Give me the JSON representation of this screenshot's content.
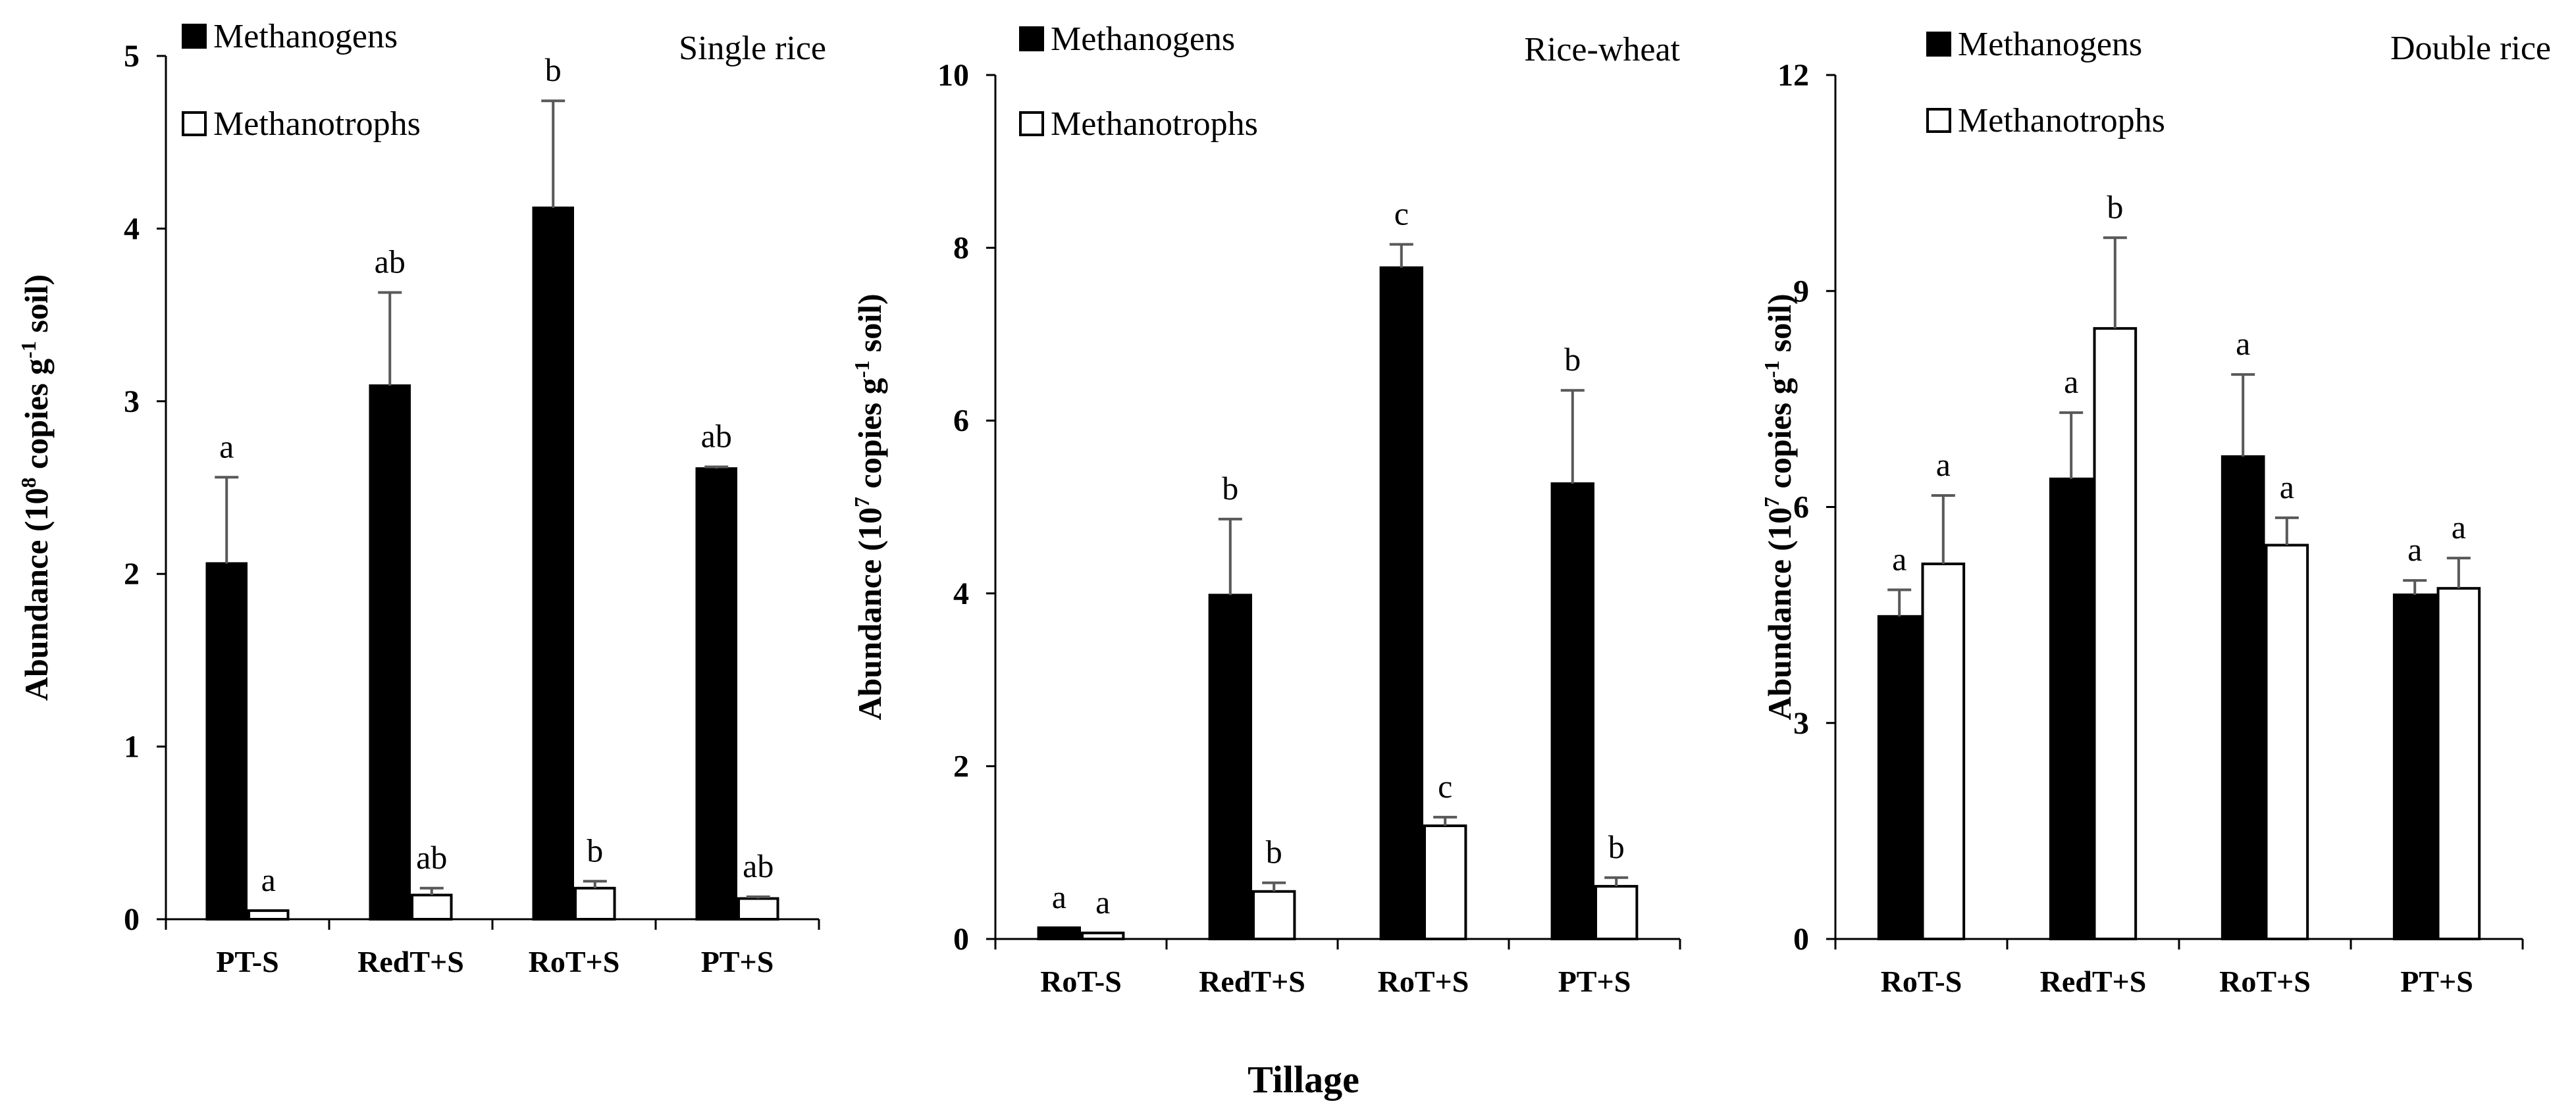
{
  "chart_data": [
    {
      "type": "bar",
      "title": "Single rice",
      "ylabel": {
        "pre": "Abundance (10",
        "sup": "8",
        "mid": " copies g",
        "sup2": "-1",
        "post": " soil)"
      },
      "ylim": [
        0,
        5
      ],
      "yticks": [
        0,
        1,
        2,
        3,
        4,
        5
      ],
      "categories": [
        "PT-S",
        "RedT+S",
        "RoT+S",
        "PT+S"
      ],
      "series": [
        {
          "name": "Methanogens",
          "fill": "#000000",
          "values": [
            2.06,
            3.09,
            4.12,
            2.61
          ],
          "errors": [
            0.5,
            0.54,
            0.62,
            0.01
          ],
          "letters": [
            "a",
            "ab",
            "b",
            "ab"
          ]
        },
        {
          "name": "Methanotrophs",
          "fill": "#ffffff",
          "values": [
            0.05,
            0.14,
            0.18,
            0.12
          ],
          "errors": [
            0.0,
            0.04,
            0.04,
            0.01
          ],
          "letters": [
            "a",
            "ab",
            "b",
            "ab"
          ]
        }
      ]
    },
    {
      "type": "bar",
      "title": "Rice-wheat",
      "ylabel": {
        "pre": "Abundance (10",
        "sup": "7",
        "mid": " copies g",
        "sup2": "-1",
        "post": " soil)"
      },
      "ylim": [
        0,
        10
      ],
      "yticks": [
        0,
        2,
        4,
        6,
        8,
        10
      ],
      "categories": [
        "RoT-S",
        "RedT+S",
        "RoT+S",
        "PT+S"
      ],
      "series": [
        {
          "name": "Methanogens",
          "fill": "#000000",
          "values": [
            0.13,
            3.98,
            7.77,
            5.27
          ],
          "errors": [
            0.0,
            0.88,
            0.27,
            1.08
          ],
          "letters": [
            "a",
            "b",
            "c",
            "b"
          ]
        },
        {
          "name": "Methanotrophs",
          "fill": "#ffffff",
          "values": [
            0.07,
            0.55,
            1.31,
            0.61
          ],
          "errors": [
            0.0,
            0.1,
            0.1,
            0.1
          ],
          "letters": [
            "a",
            "b",
            "c",
            "b"
          ]
        }
      ]
    },
    {
      "type": "bar",
      "title": "Double rice",
      "ylabel": {
        "pre": "Abundance (10",
        "sup": "7",
        "mid": " copies g",
        "sup2": "-1",
        "post": " soil)"
      },
      "ylim": [
        0,
        12
      ],
      "yticks": [
        0,
        3,
        6,
        9,
        12
      ],
      "categories": [
        "RoT-S",
        "RedT+S",
        "RoT+S",
        "PT+S"
      ],
      "series": [
        {
          "name": "Methanogens",
          "fill": "#000000",
          "values": [
            4.48,
            6.39,
            6.7,
            4.78
          ],
          "errors": [
            0.37,
            0.92,
            1.14,
            0.2
          ],
          "letters": [
            "a",
            "a",
            "a",
            "a"
          ]
        },
        {
          "name": "Methanotrophs",
          "fill": "#ffffff",
          "values": [
            5.21,
            8.48,
            5.47,
            4.87
          ],
          "errors": [
            0.95,
            1.26,
            0.38,
            0.42
          ],
          "letters": [
            "a",
            "b",
            "a",
            "a"
          ]
        }
      ]
    }
  ],
  "xlabel": "Tillage"
}
